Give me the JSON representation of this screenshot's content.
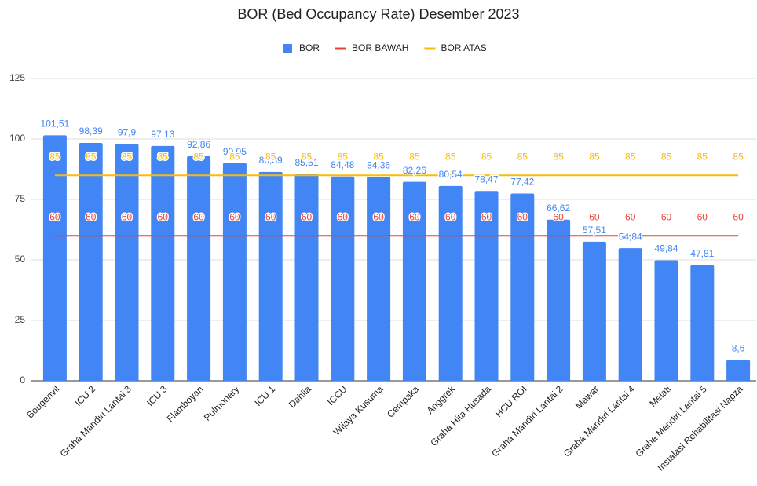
{
  "chart_data": {
    "type": "bar",
    "title": "BOR (Bed Occupancy Rate) Desember 2023",
    "categories": [
      "Bougenvil",
      "ICU 2",
      "Graha Mandiri Lantai 3",
      "ICU 3",
      "Flamboyan",
      "Pulmonary",
      "ICU 1",
      "Dahlia",
      "ICCU",
      "Wijaya Kusuma",
      "Cempaka",
      "Anggrek",
      "Graha Hita Husada",
      "HCU ROI",
      "Graha Mandiri Lantai 2",
      "Mawar",
      "Graha Mandiri Lantai 4",
      "Melati",
      "Graha Mandiri Lantai 5",
      "Instalasi Rehabilitasi Napza"
    ],
    "series": [
      {
        "name": "BOR",
        "type": "bar",
        "color": "#4285f4",
        "values": [
          101.51,
          98.39,
          97.9,
          97.13,
          92.86,
          90.05,
          86.39,
          85.51,
          84.48,
          84.36,
          82.26,
          80.54,
          78.47,
          77.42,
          66.62,
          57.51,
          54.84,
          49.84,
          47.81,
          8.6
        ],
        "value_labels": [
          "101,51",
          "98,39",
          "97,9",
          "97,13",
          "92,86",
          "90,05",
          "86,39",
          "85,51",
          "84,48",
          "84,36",
          "82,26",
          "80,54",
          "78,47",
          "77,42",
          "66,62",
          "57,51",
          "54,84",
          "49,84",
          "47,81",
          "8,6"
        ]
      },
      {
        "name": "BOR BAWAH",
        "type": "line",
        "color": "#ea4335",
        "values": [
          60,
          60,
          60,
          60,
          60,
          60,
          60,
          60,
          60,
          60,
          60,
          60,
          60,
          60,
          60,
          60,
          60,
          60,
          60,
          60
        ]
      },
      {
        "name": "BOR ATAS",
        "type": "line",
        "color": "#fbbc04",
        "values": [
          85,
          85,
          85,
          85,
          85,
          85,
          85,
          85,
          85,
          85,
          85,
          85,
          85,
          85,
          85,
          85,
          85,
          85,
          85,
          85
        ]
      }
    ],
    "ylim": [
      0,
      125
    ],
    "yticks": [
      0,
      25,
      50,
      75,
      100,
      125
    ],
    "grid": true,
    "legend": "top"
  }
}
